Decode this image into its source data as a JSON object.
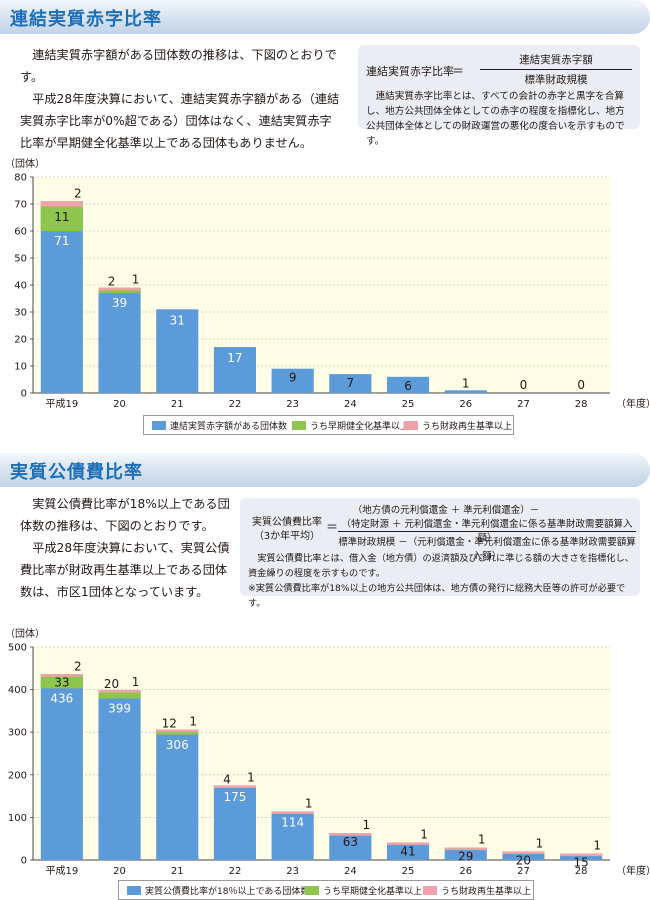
{
  "section1": {
    "title": "連結実質赤字比率",
    "paragraphs": [
      "連結実質赤字額がある団体数の推移は、下図のとおりです。",
      "平成28年度決算において、連結実質赤字額がある（連結実質赤字比率が0%超である）団体はなく、連結実質赤字比率が早期健全化基準以上である団体もありません。"
    ],
    "formula": {
      "label": "連結実質赤字比率",
      "equals": "＝",
      "numerator": "連結実質赤字額",
      "denominator": "標準財政規模",
      "description": "連結実質赤字比率とは、すべての会計の赤字と黒字を合算し、地方公共団体全体としての赤字の程度を指標化し、地方公共団体全体としての財政運営の悪化の度合いを示すものです。"
    }
  },
  "section2": {
    "title": "実質公債費比率",
    "paragraphs": [
      "実質公債費比率が18%以上である団体数の推移は、下図のとおりです。",
      "平成28年度決算において、実質公債費比率が財政再生基準以上である団体数は、市区1団体となっています。"
    ],
    "formula": {
      "label_line1": "実質公債費比率",
      "label_line2": "（3か年平均）",
      "equals": "＝",
      "numerator_line1": "（地方債の元利償還金 ＋ 準元利償還金）－",
      "numerator_line2": "（特定財源 ＋ 元利償還金・準元利償還金に係る基準財政需要額算入額）",
      "denominator": "標準財政規模 －（元利償還金・準元利償還金に係る基準財政需要額算入額）",
      "description": "実質公債費比率とは、借入金（地方債）の返済額及びこれに準じる額の大きさを指標化し、資金繰りの程度を示すものです。",
      "note": "※実質公債費比率が18%以上の地方公共団体は、地方債の発行に総務大臣等の許可が必要です。"
    }
  },
  "colors": {
    "main": "#5b9bd9",
    "early": "#8ec54d",
    "rebuild": "#f0a2ab",
    "plot_bg": "#fffde6",
    "title": "#1d6fb8"
  },
  "chart_data": [
    {
      "type": "bar",
      "stacked": true,
      "y_unit": "（団体）",
      "x_unit": "（年度）",
      "categories": [
        "平成19",
        "20",
        "21",
        "22",
        "23",
        "24",
        "25",
        "26",
        "27",
        "28"
      ],
      "ylim": [
        0,
        80
      ],
      "yticks": [
        0,
        10,
        20,
        30,
        40,
        50,
        60,
        70,
        80
      ],
      "series": [
        {
          "name": "連結実質赤字額がある団体数",
          "values": [
            71,
            39,
            31,
            17,
            9,
            7,
            6,
            1,
            0,
            0
          ]
        },
        {
          "name": "うち早期健全化基準以上",
          "values": [
            11,
            2,
            0,
            0,
            0,
            0,
            0,
            0,
            0,
            0
          ]
        },
        {
          "name": "うち財政再生基準以上",
          "values": [
            2,
            1,
            0,
            0,
            0,
            0,
            0,
            0,
            0,
            0
          ]
        }
      ],
      "labels": {
        "total": [
          "71",
          "39",
          "31",
          "17",
          "9",
          "7",
          "6",
          "1",
          "0",
          "0"
        ],
        "early": [
          "11",
          "2",
          "",
          "",
          "",
          "",
          "",
          "",
          "",
          ""
        ],
        "rebuild": [
          "2",
          "1",
          "",
          "",
          "",
          "",
          "",
          "",
          "",
          ""
        ]
      },
      "grid": true,
      "legend": "bottom-center"
    },
    {
      "type": "bar",
      "stacked": true,
      "y_unit": "（団体）",
      "x_unit": "（年度）",
      "categories": [
        "平成19",
        "20",
        "21",
        "22",
        "23",
        "24",
        "25",
        "26",
        "27",
        "28"
      ],
      "ylim": [
        0,
        500
      ],
      "yticks": [
        0,
        100,
        200,
        300,
        400,
        500
      ],
      "series": [
        {
          "name": "実質公債費比率が18％以上である団体数",
          "values": [
            436,
            399,
            306,
            175,
            114,
            63,
            41,
            29,
            20,
            15
          ]
        },
        {
          "name": "うち早期健全化基準以上",
          "values": [
            33,
            20,
            12,
            4,
            0,
            0,
            0,
            0,
            0,
            0
          ]
        },
        {
          "name": "うち財政再生基準以上",
          "values": [
            2,
            1,
            1,
            1,
            1,
            1,
            1,
            1,
            1,
            1
          ]
        }
      ],
      "labels": {
        "total": [
          "436",
          "399",
          "306",
          "175",
          "114",
          "63",
          "41",
          "29",
          "20",
          "15"
        ],
        "early": [
          "33",
          "20",
          "12",
          "4",
          "",
          "",
          "",
          "",
          "",
          ""
        ],
        "rebuild": [
          "2",
          "1",
          "1",
          "1",
          "1",
          "1",
          "1",
          "1",
          "1",
          "1"
        ]
      },
      "grid": true,
      "legend": "bottom-center"
    }
  ]
}
